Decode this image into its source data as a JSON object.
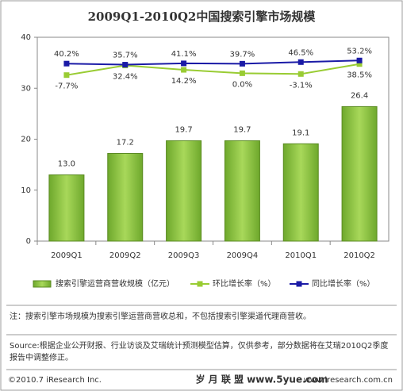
{
  "chart_data": {
    "type": "bar",
    "title": "2009Q1-2010Q2中国搜索引擎市场规模",
    "categories": [
      "2009Q1",
      "2009Q2",
      "2009Q3",
      "2009Q4",
      "2010Q1",
      "2010Q2"
    ],
    "ylim": [
      0,
      40
    ],
    "yticks": [
      0,
      10,
      20,
      30,
      40
    ],
    "y2lim": [
      -700,
      150
    ],
    "series": [
      {
        "name": "搜索引擎运营商营收规模（亿元）",
        "type": "bar",
        "color": "#8cc63f",
        "values": [
          13.0,
          17.2,
          19.7,
          19.7,
          19.1,
          26.4
        ],
        "value_labels": [
          "13.0",
          "17.2",
          "19.7",
          "19.7",
          "19.1",
          "26.4"
        ]
      },
      {
        "name": "环比增长率（%）",
        "type": "line",
        "axis": "y2",
        "color": "#99cc33",
        "values": [
          -7.7,
          32.4,
          14.2,
          0.0,
          -3.1,
          38.5
        ],
        "value_labels": [
          "-7.7%",
          "32.4%",
          "14.2%",
          "0.0%",
          "-3.1%",
          "38.5%"
        ]
      },
      {
        "name": "同比增长率（%）",
        "type": "line",
        "axis": "y2",
        "color": "#1a1aa6",
        "values": [
          40.2,
          35.7,
          41.1,
          39.7,
          46.5,
          53.2
        ],
        "value_labels": [
          "40.2%",
          "35.7%",
          "41.1%",
          "39.7%",
          "46.5%",
          "53.2%"
        ]
      }
    ],
    "note": "注：搜索引擎市场规模为搜索引擎运营商营收总和，不包括搜索引擎渠道代理商营收。",
    "source": "Source:根据企业公开财报、行业访谈及艾瑞统计预测模型估算，仅供参考，部分数据将在艾瑞2010Q2季度报告中调整修正。",
    "copyright": "©2010.7 iResearch Inc.",
    "website": "www.iresearch.com.cn",
    "watermark": "岁 月 联 盟  www.5yue.com"
  }
}
